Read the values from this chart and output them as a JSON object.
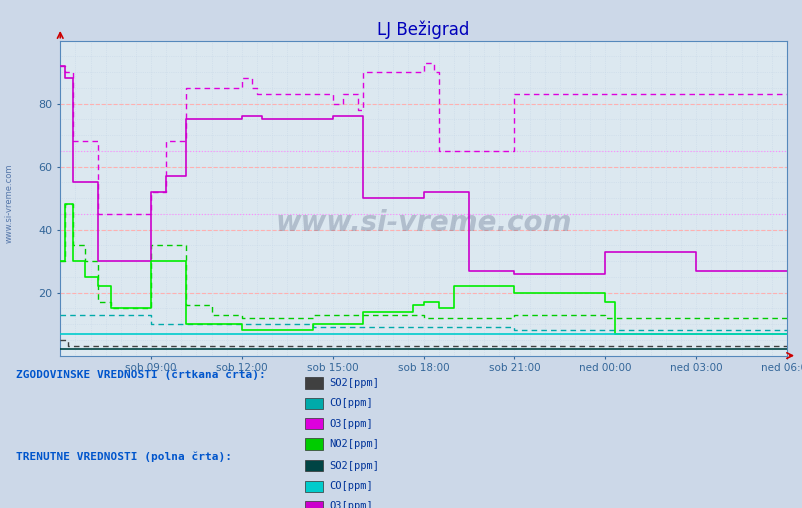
{
  "title": "LJ Bežigrad",
  "title_color": "#0000bb",
  "bg_color": "#ccd8e8",
  "plot_bg_color": "#dce8f0",
  "xtick_labels": [
    "sob 09:00",
    "sob 12:00",
    "sob 15:00",
    "sob 18:00",
    "sob 21:00",
    "ned 00:00",
    "ned 03:00",
    "ned 06:00"
  ],
  "xtick_positions": [
    36,
    72,
    108,
    144,
    180,
    216,
    252,
    288
  ],
  "ytick_vals": [
    20,
    40,
    60,
    80
  ],
  "ylim": [
    0,
    100
  ],
  "watermark": "www.si-vreme.com",
  "watermark_left": "www.si-vreme.com",
  "legend_text1": "ZGODOVINSKE VREDNOSTI (črtkana črta):",
  "legend_text2": "TRENUTNE VREDNOSTI (polna črta):",
  "color_SO2": "#404040",
  "color_CO": "#00aaaa",
  "color_O3": "#dd00dd",
  "color_NO2": "#00cc00",
  "color_SO2_curr": "#004444",
  "color_CO_curr": "#00cccc",
  "color_O3_curr": "#cc00cc",
  "color_NO2_curr": "#00ee00",
  "grid_minor_color": "#c8d8e8",
  "grid_major_color": "#ffb0b0",
  "grid_O3hist_color": "#ff88ff",
  "n": 289
}
